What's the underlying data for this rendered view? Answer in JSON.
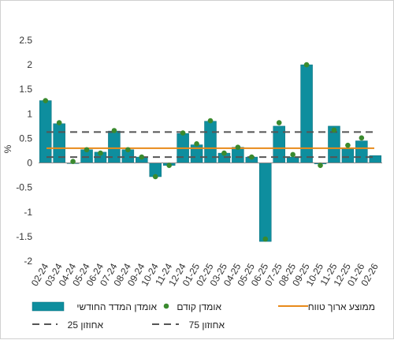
{
  "chart_data": {
    "type": "bar",
    "ylabel": "%",
    "ylim": [
      -2,
      2.5
    ],
    "yticks": [
      -2,
      -1.5,
      -1,
      -0.5,
      0,
      0.5,
      1,
      1.5,
      2,
      2.5
    ],
    "categories": [
      "02-24",
      "03-24",
      "04-24",
      "05-24",
      "06-24",
      "07-24",
      "08-24",
      "09-24",
      "10-24",
      "11-24",
      "12-24",
      "01-25",
      "02-25",
      "03-25",
      "04-25",
      "05-25",
      "06-25",
      "07-25",
      "08-25",
      "09-25",
      "10-25",
      "11-25",
      "12-25",
      "01-26",
      "02-26"
    ],
    "series": [
      {
        "name": "אומדן המדד החודשי",
        "type": "bar",
        "color": "#0e8e9e",
        "values": [
          1.27,
          0.8,
          0.0,
          0.27,
          0.22,
          0.65,
          0.27,
          0.12,
          -0.28,
          -0.05,
          0.6,
          0.37,
          0.85,
          0.2,
          0.32,
          0.12,
          -1.6,
          0.75,
          0.12,
          2.0,
          -0.02,
          0.75,
          0.29,
          0.45,
          0.15
        ]
      },
      {
        "name": "אומדן קודם",
        "type": "point",
        "color": "#3a8a2e",
        "values": [
          1.27,
          0.82,
          0.03,
          0.27,
          0.2,
          0.66,
          0.27,
          0.12,
          -0.28,
          -0.05,
          0.61,
          0.39,
          0.86,
          0.2,
          0.32,
          0.12,
          -1.55,
          0.82,
          0.17,
          2.0,
          -0.05,
          0.67,
          0.36,
          0.51,
          null
        ]
      },
      {
        "name": "ממוצע ארוך טווח",
        "type": "line",
        "color": "#e88a1a",
        "value": 0.3
      },
      {
        "name": "אחוזון 75",
        "type": "dashed-line",
        "color": "#555555",
        "value": 0.63
      },
      {
        "name": "אחוזון 25",
        "type": "dashed-line",
        "color": "#555555",
        "value": 0.12
      }
    ],
    "grid": false,
    "legend_position": "bottom"
  }
}
